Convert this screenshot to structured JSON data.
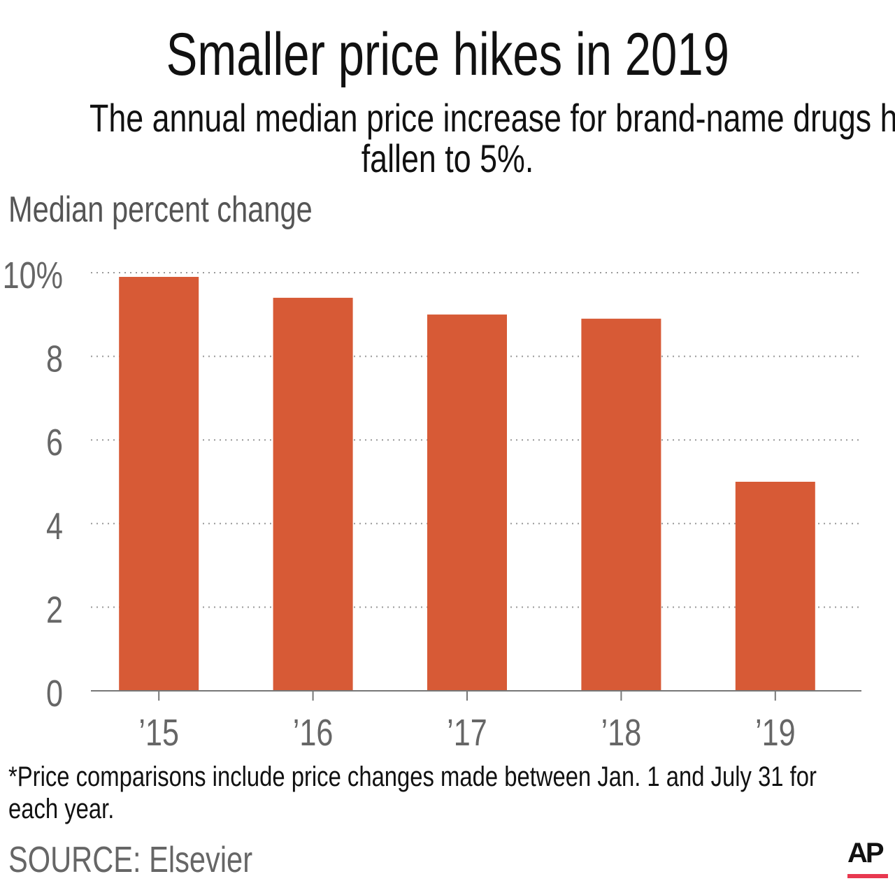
{
  "title": "Smaller price hikes in 2019",
  "subtitle": [
    "The annual median price increase for brand-name drugs has",
    "fallen to 5%."
  ],
  "footnote": "*Price comparisons include price changes made between Jan. 1 and July 31 for each year.",
  "source": "SOURCE: Elsevier",
  "logo": "AP",
  "colors": {
    "bar": "#d75a36",
    "logo_bar": "#e8384f"
  },
  "chart_data": {
    "type": "bar",
    "title": "Smaller price hikes in 2019",
    "ylabel": "Median percent change",
    "xlabel": "",
    "categories": [
      "’15",
      "’16",
      "’17",
      "’18",
      "’19"
    ],
    "values": [
      9.9,
      9.4,
      9.0,
      8.9,
      5.0
    ],
    "ylim": [
      0,
      10
    ],
    "yticks": [
      0,
      2,
      4,
      6,
      8,
      10
    ],
    "ytick_labels": [
      "0",
      "2",
      "4",
      "6",
      "8",
      "10%"
    ],
    "grid": true,
    "grid_style": "dotted",
    "legend": "none"
  }
}
